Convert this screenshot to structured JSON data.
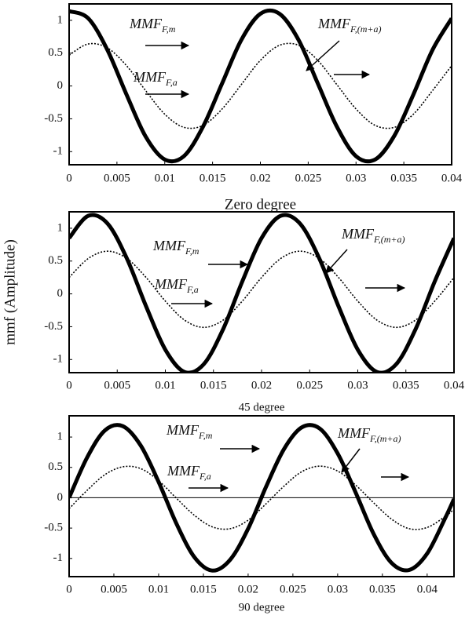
{
  "chart_data": [
    {
      "type": "line",
      "xlabel": "Zero degree",
      "x": [
        0,
        0.002,
        0.004,
        0.006,
        0.008,
        0.01,
        0.012,
        0.014,
        0.016,
        0.018,
        0.02,
        0.022,
        0.024,
        0.026,
        0.028,
        0.03,
        0.032,
        0.034,
        0.036,
        0.038,
        0.04
      ],
      "series": [
        {
          "color": "#000000",
          "style": "solid",
          "values": [
            1.14,
            1.03,
            0.55,
            -0.13,
            -0.77,
            -1.12,
            -1.07,
            -0.62,
            0.04,
            0.7,
            1.1,
            1.1,
            0.7,
            0.04,
            -0.62,
            -1.07,
            -1.12,
            -0.76,
            -0.13,
            0.55,
            1.03
          ]
        },
        {
          "color": "#000000",
          "style": "dotted",
          "values": [
            0.47,
            0.64,
            0.58,
            0.31,
            -0.07,
            -0.43,
            -0.63,
            -0.6,
            -0.35,
            0.02,
            0.39,
            0.62,
            0.62,
            0.39,
            0.02,
            -0.35,
            -0.6,
            -0.63,
            -0.43,
            -0.07,
            0.31
          ]
        }
      ],
      "xlim": [
        0,
        0.04
      ],
      "xticks": [
        0,
        0.005,
        0.01,
        0.015,
        0.02,
        0.025,
        0.03,
        0.035,
        0.04
      ],
      "ylim": [
        -1.2,
        1.25
      ],
      "yticks": [
        -1,
        -0.5,
        0,
        0.5,
        1
      ],
      "annotations": [
        {
          "text": "MMF",
          "subscript": "F,m"
        },
        {
          "text": "MMF",
          "subscript": "F,a"
        },
        {
          "text": "MMF",
          "subscript": "F,(m+a)"
        }
      ]
    },
    {
      "type": "line",
      "xlabel": "45 degree",
      "ylabel": "mmf (Amplitude)",
      "x": [
        0,
        0.002,
        0.004,
        0.006,
        0.008,
        0.01,
        0.012,
        0.014,
        0.016,
        0.018,
        0.02,
        0.022,
        0.024,
        0.026,
        0.028,
        0.03,
        0.032,
        0.034,
        0.036,
        0.038,
        0.04
      ],
      "series": [
        {
          "color": "#000000",
          "style": "solid",
          "values": [
            0.85,
            1.19,
            1.07,
            0.54,
            -0.19,
            -0.85,
            -1.19,
            -1.07,
            -0.54,
            0.19,
            0.85,
            1.19,
            1.07,
            0.54,
            -0.19,
            -0.85,
            -1.19,
            -1.07,
            -0.54,
            0.19,
            0.85
          ]
        },
        {
          "color": "#000000",
          "style": "dotted",
          "values": [
            0.25,
            0.54,
            0.65,
            0.54,
            0.25,
            -0.11,
            -0.4,
            -0.51,
            -0.4,
            -0.11,
            0.25,
            0.54,
            0.65,
            0.54,
            0.25,
            -0.11,
            -0.4,
            -0.51,
            -0.4,
            -0.11,
            0.25
          ]
        }
      ],
      "xlim": [
        0,
        0.04
      ],
      "xticks": [
        0,
        0.005,
        0.01,
        0.015,
        0.02,
        0.025,
        0.03,
        0.035,
        0.04
      ],
      "ylim": [
        -1.2,
        1.25
      ],
      "yticks": [
        -1,
        -0.5,
        0,
        0.5,
        1
      ],
      "annotations": [
        {
          "text": "MMF",
          "subscript": "F,m"
        },
        {
          "text": "MMF",
          "subscript": "F,a"
        },
        {
          "text": "MMF",
          "subscript": "F,(m+a)"
        }
      ]
    },
    {
      "type": "line",
      "xlabel": "90 degree",
      "zero_line": true,
      "x": [
        0,
        0.002,
        0.004,
        0.006,
        0.008,
        0.01,
        0.012,
        0.014,
        0.016,
        0.018,
        0.02,
        0.022,
        0.024,
        0.026,
        0.028,
        0.03,
        0.032,
        0.034,
        0.036,
        0.038,
        0.04,
        0.042,
        0.043
      ],
      "series": [
        {
          "color": "#000000",
          "style": "solid",
          "values": [
            0,
            0.66,
            1.11,
            1.18,
            0.86,
            0.26,
            -0.43,
            -0.98,
            -1.2,
            -1.02,
            -0.51,
            0.18,
            0.8,
            1.16,
            1.14,
            0.73,
            0.09,
            -0.59,
            -1.07,
            -1.19,
            -0.92,
            -0.34,
            -0.02
          ]
        },
        {
          "color": "#000000",
          "style": "dotted",
          "values": [
            -0.18,
            0.12,
            0.38,
            0.51,
            0.48,
            0.28,
            -0.01,
            -0.29,
            -0.48,
            -0.51,
            -0.37,
            -0.1,
            0.19,
            0.43,
            0.52,
            0.44,
            0.21,
            -0.08,
            -0.35,
            -0.51,
            -0.49,
            -0.31,
            -0.19
          ]
        }
      ],
      "xlim": [
        0,
        0.043
      ],
      "xticks": [
        0,
        0.005,
        0.01,
        0.015,
        0.02,
        0.025,
        0.03,
        0.035,
        0.04
      ],
      "ylim": [
        -1.3,
        1.35
      ],
      "yticks": [
        -1,
        -0.5,
        0,
        0.5,
        1
      ],
      "annotations": [
        {
          "text": "MMF",
          "subscript": "F,m"
        },
        {
          "text": "MMF",
          "subscript": "F,a"
        },
        {
          "text": "MMF",
          "subscript": "F,(m+a)"
        }
      ]
    }
  ]
}
